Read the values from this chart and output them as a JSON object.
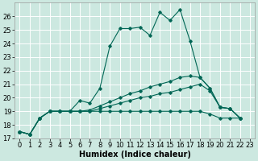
{
  "bg_color": "#cce8e0",
  "grid_color": "#ffffff",
  "line_color": "#006655",
  "xlim": [
    -0.5,
    23.5
  ],
  "ylim": [
    17,
    27
  ],
  "xticks": [
    0,
    1,
    2,
    3,
    4,
    5,
    6,
    7,
    8,
    9,
    10,
    11,
    12,
    13,
    14,
    15,
    16,
    17,
    18,
    19,
    20,
    21,
    22,
    23
  ],
  "yticks": [
    17,
    18,
    19,
    20,
    21,
    22,
    23,
    24,
    25,
    26
  ],
  "series_main": [
    17.5,
    17.3,
    18.5,
    19.0,
    19.0,
    19.0,
    19.8,
    19.6,
    20.7,
    23.8,
    25.1,
    25.1,
    25.2,
    24.6,
    26.3,
    25.7,
    26.5,
    24.2,
    21.5,
    20.7,
    19.3,
    19.2,
    18.5
  ],
  "series_flat": [
    17.5,
    17.3,
    18.5,
    19.0,
    19.0,
    19.0,
    19.0,
    19.0,
    19.0,
    19.0,
    19.0,
    19.0,
    19.0,
    19.0,
    19.0,
    19.0,
    19.0,
    19.0,
    19.0,
    18.8,
    18.5,
    18.5,
    18.5
  ],
  "series_mid1": [
    17.5,
    17.3,
    18.5,
    19.0,
    19.0,
    19.0,
    19.0,
    19.1,
    19.4,
    19.7,
    20.0,
    20.3,
    20.5,
    20.8,
    21.0,
    21.2,
    21.5,
    21.6,
    21.5,
    20.7,
    19.3,
    19.2,
    18.5
  ],
  "series_mid2": [
    17.5,
    17.3,
    18.5,
    19.0,
    19.0,
    19.0,
    19.0,
    19.0,
    19.2,
    19.4,
    19.6,
    19.8,
    20.0,
    20.1,
    20.3,
    20.4,
    20.6,
    20.8,
    21.0,
    20.5,
    19.3,
    19.2,
    18.5
  ],
  "xlabel": "Humidex (Indice chaleur)",
  "xlabel_fontsize": 7,
  "tick_fontsize": 6
}
